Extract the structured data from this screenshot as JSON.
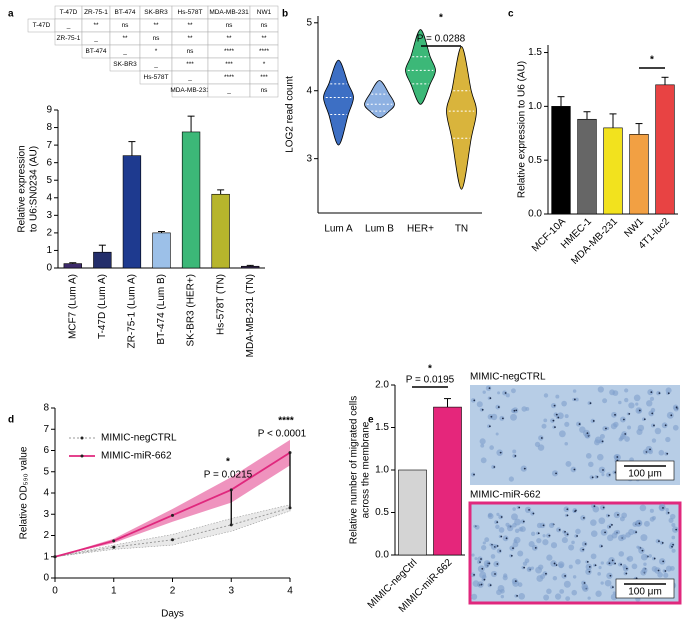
{
  "table": {
    "columns": [
      "T-47D",
      "ZR-75-1",
      "BT-474",
      "SK-BR3",
      "Hs-578T",
      "MDA-MB-231",
      "NW1"
    ],
    "rows": [
      {
        "label": "T-47D",
        "cells": [
          "_",
          "**",
          "ns",
          "**",
          "**",
          "ns",
          "ns"
        ]
      },
      {
        "label": "ZR-75-1",
        "cells": [
          "_",
          "**",
          "ns",
          "**",
          "**",
          "**"
        ]
      },
      {
        "label": "BT-474",
        "cells": [
          "_",
          "*",
          "ns",
          "****",
          "****"
        ]
      },
      {
        "label": "SK-BR3",
        "cells": [
          "_",
          "***",
          "***",
          "*"
        ]
      },
      {
        "label": "Hs-578T",
        "cells": [
          "_",
          "****",
          "***"
        ]
      },
      {
        "label": "MDA-MB-231",
        "cells": [
          "_",
          "ns"
        ]
      }
    ]
  },
  "images": [
    {
      "label": "MIMIC-negCTRL",
      "scale": "100 μm"
    },
    {
      "label": "MIMIC-miR-662",
      "scale": "100 μm"
    }
  ],
  "chart_data": [
    {
      "panel": "a",
      "type": "bar",
      "categories": [
        "MCF7 (Lum A)",
        "T-47D (Lum A)",
        "ZR-75-1 (Lum A)",
        "BT-474 (Lum B)",
        "SK-BR3 (HER+)",
        "Hs-578T (TN)",
        "MDA-MB-231 (TN)"
      ],
      "values": [
        0.25,
        0.9,
        6.4,
        2.0,
        7.75,
        4.2,
        0.1
      ],
      "errors": [
        0.05,
        0.4,
        0.8,
        0.08,
        0.9,
        0.25,
        0.05
      ],
      "colors": [
        "#3d2b6b",
        "#232e6b",
        "#1e3a8f",
        "#9cc0e8",
        "#3cb878",
        "#b7b52c",
        "#3a2b55"
      ],
      "ylabel": [
        "Relative expression",
        "to U6:SN0234 (AU)"
      ],
      "ylim": [
        0,
        9
      ],
      "yticks": [
        0,
        1,
        2,
        3,
        4,
        5,
        6,
        7,
        8,
        9
      ]
    },
    {
      "panel": "b",
      "type": "violin",
      "categories": [
        "Lum A",
        "Lum B",
        "HER+",
        "TN"
      ],
      "min": [
        3.2,
        3.6,
        3.8,
        2.55
      ],
      "q1": [
        3.65,
        3.7,
        4.1,
        3.3
      ],
      "median": [
        3.9,
        3.8,
        4.3,
        3.7
      ],
      "q3": [
        4.1,
        3.95,
        4.5,
        4.0
      ],
      "max": [
        4.45,
        4.15,
        4.9,
        4.65
      ],
      "colors": [
        "#3d6fc4",
        "#8eb1e2",
        "#3cb878",
        "#d9b43c"
      ],
      "ylabel": [
        "LOG2 read count"
      ],
      "ylim": [
        2.2,
        5.1
      ],
      "yticks": [
        3,
        4,
        5
      ],
      "annotations": [
        "*",
        "P = 0.0288"
      ]
    },
    {
      "panel": "c",
      "type": "bar",
      "categories": [
        "MCF-10A",
        "HMEC-1",
        "MDA-MB-231",
        "NW1",
        "4T1-luc2"
      ],
      "values": [
        1.0,
        0.88,
        0.8,
        0.74,
        1.2
      ],
      "errors": [
        0.09,
        0.07,
        0.13,
        0.1,
        0.07
      ],
      "colors": [
        "#000000",
        "#666666",
        "#f2e21e",
        "#f2a043",
        "#e84343"
      ],
      "ylabel": [
        "Relative expression to U6 (AU)"
      ],
      "ylim": [
        0,
        1.57
      ],
      "yticks": [
        {
          "value": 0,
          "label": "0.0"
        },
        0.5,
        {
          "value": 1,
          "label": "1.0"
        },
        1.5
      ],
      "annotations": [
        "*"
      ]
    },
    {
      "panel": "d",
      "type": "line",
      "x": [
        0,
        1,
        2,
        3,
        4
      ],
      "series": [
        {
          "name": "MIMIC-negCTRL",
          "color": "#9a9a9a",
          "values": [
            1.0,
            1.45,
            1.8,
            2.5,
            3.3
          ],
          "errors": [
            0,
            0.1,
            0.25,
            0.3,
            0.15
          ]
        },
        {
          "name": "MIMIC-miR-662",
          "color": "#e0287d",
          "values": [
            1.0,
            1.75,
            2.95,
            4.15,
            5.9
          ],
          "errors": [
            0,
            0.1,
            0.3,
            0.6,
            0.6
          ]
        }
      ],
      "xlabel": "Days",
      "ylabel": [
        "Relative OD₅₉₀ value"
      ],
      "xlim": [
        0,
        4
      ],
      "xticks": [
        0,
        1,
        2,
        3,
        4
      ],
      "ylim": [
        0,
        8
      ],
      "yticks": [
        0,
        1,
        2,
        3,
        4,
        5,
        6,
        7,
        8
      ],
      "legend": "upper left",
      "annotations": [
        "*",
        "P = 0.0215",
        "****",
        "P < 0.0001"
      ]
    },
    {
      "panel": "e",
      "type": "bar",
      "categories": [
        "MIMIC-negCtrl",
        "MIMIC-miR-662"
      ],
      "values": [
        1.0,
        1.74
      ],
      "errors": [
        null,
        0.1
      ],
      "colors": [
        "#d4d4d4",
        "#e5267b"
      ],
      "ylabel": [
        "Relative number of migrated cells",
        "across the membrane"
      ],
      "ylim": [
        0,
        2
      ],
      "yticks": [
        {
          "value": 0,
          "label": "0.0"
        },
        0.5,
        {
          "value": 1,
          "label": "1.0"
        },
        1.5,
        {
          "value": 2,
          "label": "2.0"
        }
      ],
      "annotations": [
        "*",
        "P = 0.0195"
      ]
    }
  ]
}
